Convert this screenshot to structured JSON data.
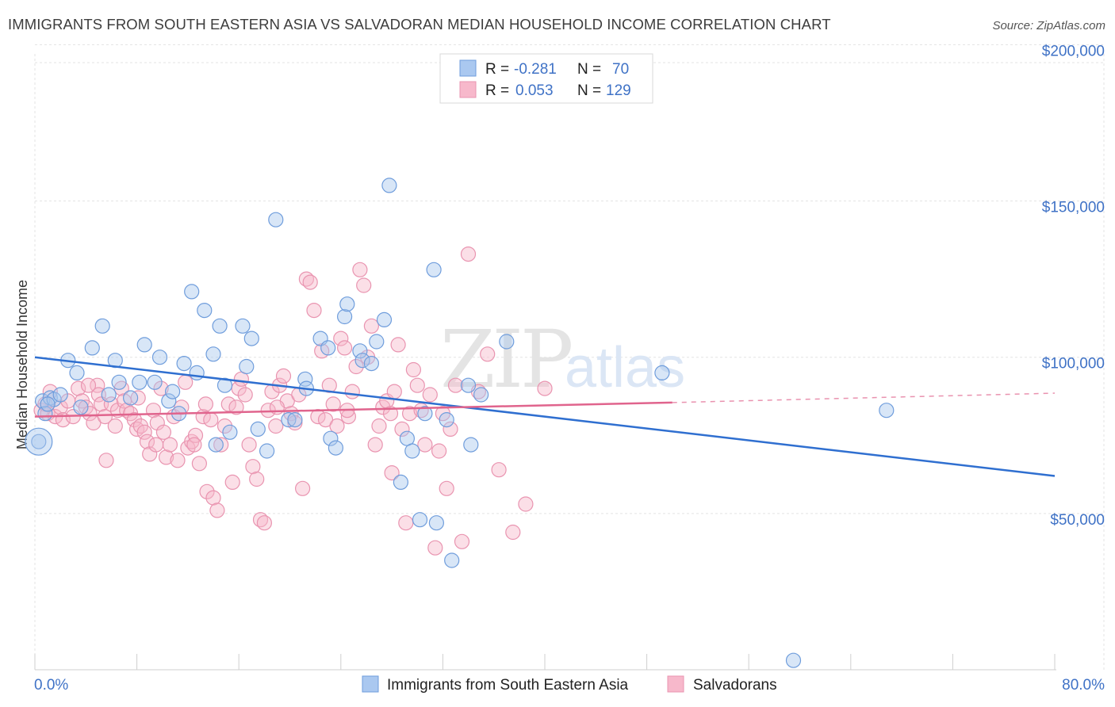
{
  "title": "IMMIGRANTS FROM SOUTH EASTERN ASIA VS SALVADORAN MEDIAN HOUSEHOLD INCOME CORRELATION CHART",
  "source": "Source: ZipAtlas.com",
  "watermark": {
    "zip": "ZIP",
    "atlas": "atlas"
  },
  "legend": {
    "rows": [
      {
        "r_label": "R =",
        "r_value": "-0.281",
        "n_label": "N =",
        "n_value": "70",
        "color": "#aac8f0"
      },
      {
        "r_label": "R =",
        "r_value": "0.053",
        "n_label": "N =",
        "n_value": "129",
        "color": "#f7b8cb"
      }
    ]
  },
  "bottom_legend": [
    {
      "label": "Immigrants from South Eastern Asia",
      "color": "#aac8f0"
    },
    {
      "label": "Salvadorans",
      "color": "#f7b8cb"
    }
  ],
  "colors": {
    "blue_fill": "#a9c7ee",
    "blue_stroke": "#6f9ddc",
    "blue_line": "#2f6fd0",
    "pink_fill": "#f6b7ca",
    "pink_stroke": "#e994b0",
    "pink_line": "#e0648d",
    "grid": "#e3e3e3",
    "axis_text": "#3f72c6"
  },
  "chart_data": {
    "type": "scatter",
    "title": "IMMIGRANTS FROM SOUTH EASTERN ASIA VS SALVADORAN MEDIAN HOUSEHOLD INCOME CORRELATION CHART",
    "xlabel": "",
    "ylabel": "Median Household Income",
    "xlim": [
      0,
      80
    ],
    "ylim": [
      0,
      210000
    ],
    "x_tick_labels": [
      "0.0%",
      "80.0%"
    ],
    "y_ticks": [
      50000,
      100000,
      150000,
      200000
    ],
    "y_tick_labels": [
      "$50,000",
      "$100,000",
      "$150,000",
      "$200,000"
    ],
    "grid": true,
    "legend_position": "top-center",
    "series": [
      {
        "name": "Immigrants from South Eastern Asia",
        "R": -0.281,
        "N": 70,
        "trend": {
          "x": [
            0,
            80
          ],
          "y": [
            100000,
            62000
          ]
        },
        "points": [
          [
            0.6,
            86000
          ],
          [
            0.8,
            82000
          ],
          [
            1.2,
            87000
          ],
          [
            1.5,
            86500
          ],
          [
            2,
            88000
          ],
          [
            2.6,
            99000
          ],
          [
            3.3,
            95000
          ],
          [
            3.6,
            84000
          ],
          [
            4.5,
            103000
          ],
          [
            5.3,
            110000
          ],
          [
            6.3,
            99000
          ],
          [
            5.8,
            88000
          ],
          [
            6.6,
            92000
          ],
          [
            7.5,
            87000
          ],
          [
            8.2,
            92000
          ],
          [
            8.6,
            104000
          ],
          [
            9.4,
            92000
          ],
          [
            9.8,
            100000
          ],
          [
            10.5,
            86000
          ],
          [
            10.8,
            89000
          ],
          [
            11.3,
            82000
          ],
          [
            11.7,
            98000
          ],
          [
            12.3,
            121000
          ],
          [
            12.7,
            95000
          ],
          [
            13.3,
            115000
          ],
          [
            14,
            101000
          ],
          [
            14.5,
            110000
          ],
          [
            14.9,
            91000
          ],
          [
            15.3,
            76000
          ],
          [
            14.2,
            72000
          ],
          [
            16.3,
            110000
          ],
          [
            16.6,
            97000
          ],
          [
            17,
            106000
          ],
          [
            17.5,
            77000
          ],
          [
            18.2,
            70000
          ],
          [
            18.9,
            144000
          ],
          [
            19.9,
            80000
          ],
          [
            20.4,
            80000
          ],
          [
            21.2,
            93000
          ],
          [
            21.3,
            90000
          ],
          [
            22.4,
            106000
          ],
          [
            23,
            103000
          ],
          [
            23.2,
            74000
          ],
          [
            23.6,
            71000
          ],
          [
            24.3,
            113000
          ],
          [
            24.5,
            117000
          ],
          [
            25.5,
            102000
          ],
          [
            25.7,
            99000
          ],
          [
            26.4,
            98000
          ],
          [
            26.8,
            105000
          ],
          [
            27.4,
            112000
          ],
          [
            27.8,
            155000
          ],
          [
            28.7,
            60000
          ],
          [
            29.2,
            74000
          ],
          [
            29.6,
            70000
          ],
          [
            30.2,
            48000
          ],
          [
            30.6,
            82000
          ],
          [
            31.3,
            128000
          ],
          [
            31.5,
            47000
          ],
          [
            32.3,
            80000
          ],
          [
            32.7,
            35000
          ],
          [
            34,
            91000
          ],
          [
            34.2,
            72000
          ],
          [
            35,
            88000
          ],
          [
            37,
            105000
          ],
          [
            49.2,
            95000
          ],
          [
            66.8,
            83000
          ],
          [
            59.5,
            3000
          ],
          [
            0.3,
            73000
          ],
          [
            1,
            85000
          ]
        ]
      },
      {
        "name": "Salvadorans",
        "R": 0.053,
        "N": 129,
        "trend": {
          "x": [
            0,
            50
          ],
          "y": [
            81000,
            85500
          ],
          "dashed_to": [
            80,
            88500
          ]
        },
        "points": [
          [
            0.5,
            83000
          ],
          [
            0.8,
            85000
          ],
          [
            1,
            82000
          ],
          [
            1.2,
            89000
          ],
          [
            1.6,
            81000
          ],
          [
            2,
            84000
          ],
          [
            2.2,
            80000
          ],
          [
            2.6,
            86000
          ],
          [
            3,
            81000
          ],
          [
            3.4,
            90000
          ],
          [
            3.7,
            86000
          ],
          [
            4,
            84000
          ],
          [
            4.3,
            82000
          ],
          [
            4.6,
            79000
          ],
          [
            4.9,
            91000
          ],
          [
            5,
            88000
          ],
          [
            5.2,
            85000
          ],
          [
            5.5,
            81000
          ],
          [
            5.6,
            67000
          ],
          [
            6,
            85000
          ],
          [
            6.3,
            78000
          ],
          [
            6.5,
            83000
          ],
          [
            6.8,
            90000
          ],
          [
            7,
            86000
          ],
          [
            7.2,
            83000
          ],
          [
            7.5,
            82000
          ],
          [
            7.8,
            80000
          ],
          [
            8,
            77000
          ],
          [
            8.1,
            87000
          ],
          [
            8.3,
            78000
          ],
          [
            8.6,
            76000
          ],
          [
            8.8,
            73000
          ],
          [
            9,
            69000
          ],
          [
            9.3,
            83000
          ],
          [
            9.6,
            79000
          ],
          [
            9.9,
            90000
          ],
          [
            10.1,
            76000
          ],
          [
            10.3,
            68000
          ],
          [
            10.6,
            72000
          ],
          [
            10.9,
            81000
          ],
          [
            11.2,
            67000
          ],
          [
            11.5,
            84000
          ],
          [
            11.8,
            92000
          ],
          [
            12,
            71000
          ],
          [
            12.3,
            73000
          ],
          [
            12.6,
            75000
          ],
          [
            12.9,
            66000
          ],
          [
            13.2,
            81000
          ],
          [
            13.5,
            57000
          ],
          [
            13.8,
            80000
          ],
          [
            14,
            55000
          ],
          [
            14.3,
            51000
          ],
          [
            14.6,
            72000
          ],
          [
            14.9,
            78000
          ],
          [
            15.2,
            85000
          ],
          [
            15.5,
            60000
          ],
          [
            15.8,
            84000
          ],
          [
            16,
            90000
          ],
          [
            16.2,
            93000
          ],
          [
            16.5,
            88000
          ],
          [
            16.8,
            72000
          ],
          [
            17.1,
            65000
          ],
          [
            17.4,
            61000
          ],
          [
            17.7,
            48000
          ],
          [
            18,
            47000
          ],
          [
            18.3,
            83000
          ],
          [
            18.6,
            89000
          ],
          [
            18.9,
            78000
          ],
          [
            19.2,
            91000
          ],
          [
            19.5,
            94000
          ],
          [
            19.8,
            86000
          ],
          [
            20.1,
            82000
          ],
          [
            20.4,
            79000
          ],
          [
            20.7,
            88000
          ],
          [
            21,
            58000
          ],
          [
            21.3,
            125000
          ],
          [
            21.6,
            124000
          ],
          [
            21.9,
            115000
          ],
          [
            22.2,
            81000
          ],
          [
            22.5,
            102000
          ],
          [
            22.8,
            80000
          ],
          [
            23.1,
            91000
          ],
          [
            23.4,
            85000
          ],
          [
            23.7,
            78000
          ],
          [
            24,
            106000
          ],
          [
            24.3,
            103000
          ],
          [
            24.6,
            81000
          ],
          [
            24.9,
            89000
          ],
          [
            25.2,
            97000
          ],
          [
            25.5,
            128000
          ],
          [
            25.8,
            123000
          ],
          [
            26.1,
            100000
          ],
          [
            26.4,
            110000
          ],
          [
            26.7,
            72000
          ],
          [
            27,
            78000
          ],
          [
            27.3,
            84000
          ],
          [
            27.6,
            86000
          ],
          [
            27.9,
            82000
          ],
          [
            28.2,
            89000
          ],
          [
            28.5,
            104000
          ],
          [
            28.8,
            77000
          ],
          [
            29.1,
            47000
          ],
          [
            29.4,
            82000
          ],
          [
            29.7,
            96000
          ],
          [
            30,
            91000
          ],
          [
            30.3,
            83000
          ],
          [
            30.6,
            72000
          ],
          [
            31,
            88000
          ],
          [
            31.4,
            39000
          ],
          [
            31.7,
            70000
          ],
          [
            32,
            82000
          ],
          [
            32.3,
            58000
          ],
          [
            32.6,
            77000
          ],
          [
            33,
            91000
          ],
          [
            33.5,
            41000
          ],
          [
            34,
            133000
          ],
          [
            34.8,
            89000
          ],
          [
            35.5,
            101000
          ],
          [
            36.4,
            64000
          ],
          [
            37.5,
            44000
          ],
          [
            38.5,
            53000
          ],
          [
            40,
            90000
          ],
          [
            28,
            63000
          ],
          [
            12.5,
            72000
          ],
          [
            9.5,
            72000
          ],
          [
            13.4,
            85000
          ],
          [
            24.5,
            83000
          ],
          [
            19,
            84000
          ],
          [
            4.2,
            91000
          ]
        ]
      }
    ]
  }
}
